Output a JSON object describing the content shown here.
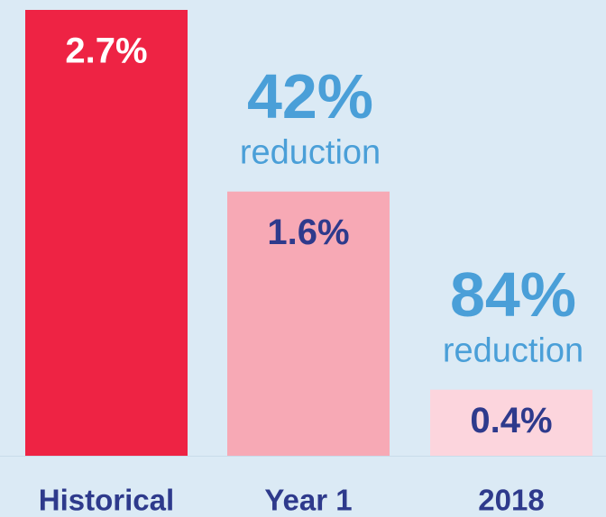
{
  "chart_data": {
    "type": "bar",
    "categories": [
      "Historical",
      "Year 1",
      "2018"
    ],
    "values": [
      2.7,
      1.6,
      0.4
    ],
    "value_labels": [
      "2.7%",
      "1.6%",
      "0.4%"
    ],
    "colors": [
      "#ee2344",
      "#f7a9b5",
      "#fcd5dd"
    ],
    "annotations": [
      {
        "label": "42%",
        "text": "reduction"
      },
      {
        "label": "84%",
        "text": "reduction"
      }
    ]
  }
}
